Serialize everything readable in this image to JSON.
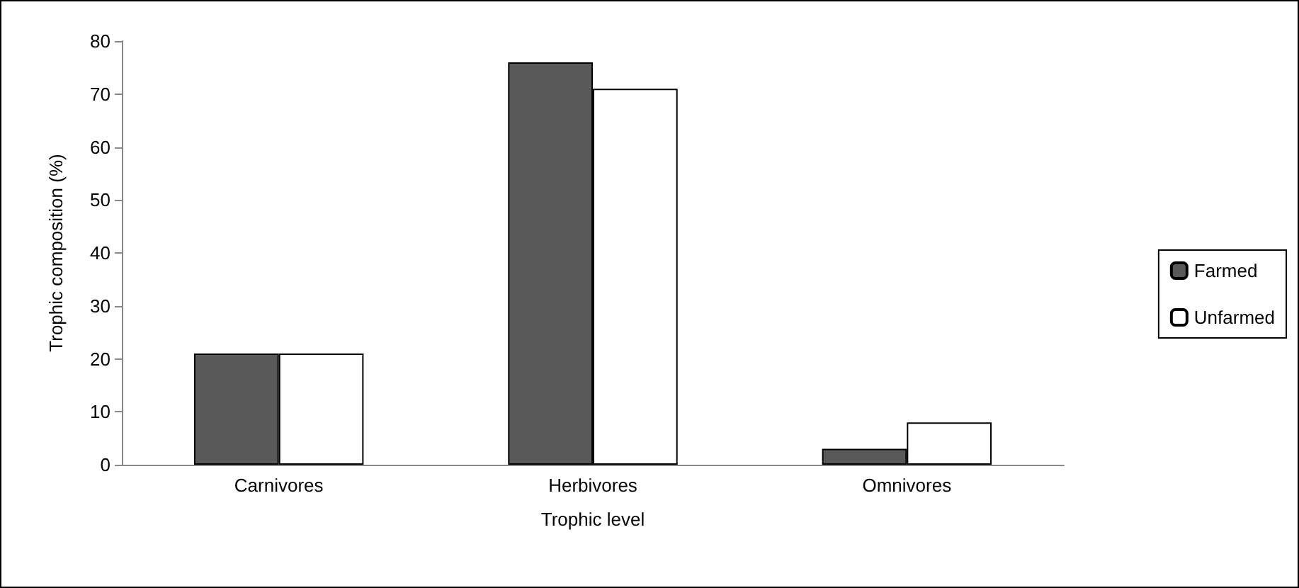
{
  "chart_data": {
    "type": "bar",
    "xlabel": "Trophic level",
    "ylabel": "Trophic composition (%)",
    "categories": [
      "Carnivores",
      "Herbivores",
      "Omnivores"
    ],
    "series": [
      {
        "name": "Farmed",
        "color": "#595959",
        "values": [
          21,
          76,
          3
        ]
      },
      {
        "name": "Unfarmed",
        "color": "#ffffff",
        "values": [
          21,
          71,
          8
        ]
      }
    ],
    "ylim": [
      0,
      80
    ],
    "yticks": [
      0,
      10,
      20,
      30,
      40,
      50,
      60,
      70,
      80
    ],
    "grid": false,
    "legend": "right"
  }
}
